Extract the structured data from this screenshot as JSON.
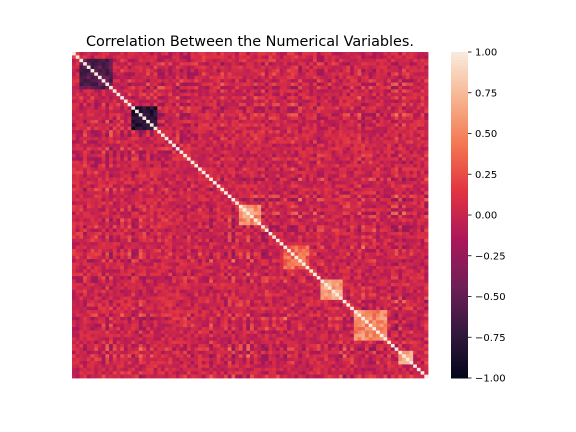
{
  "chart_data": {
    "type": "heatmap",
    "title": "Correlation Between the Numerical Variables.",
    "xlabel": "",
    "ylabel": "",
    "matrix_size": 96,
    "value_range": [
      -1.0,
      1.0
    ],
    "diagonal_value": 1.0,
    "colormap": "rocket",
    "colorbar": {
      "ticks": [
        1.0,
        0.75,
        0.5,
        0.25,
        0.0,
        -0.25,
        -0.5,
        -0.75,
        -1.0
      ],
      "tick_labels": [
        "1.00",
        "0.75",
        "0.50",
        "0.25",
        "0.00",
        "−0.25",
        "−0.50",
        "−0.75",
        "−1.00"
      ]
    },
    "approx_blocks": [
      {
        "rows": [
          2,
          10
        ],
        "mean": -0.55
      },
      {
        "rows": [
          16,
          22
        ],
        "mean": -0.8
      },
      {
        "rows": [
          45,
          50
        ],
        "mean": 0.55
      },
      {
        "rows": [
          57,
          63
        ],
        "mean": 0.35
      },
      {
        "rows": [
          67,
          72
        ],
        "mean": 0.65
      },
      {
        "rows": [
          76,
          84
        ],
        "mean": 0.5
      },
      {
        "rows": [
          88,
          91
        ],
        "mean": 0.6
      }
    ]
  },
  "colors": {
    "cmap_stops": [
      "#03051a",
      "#35193e",
      "#701f57",
      "#ad1759",
      "#e13342",
      "#f37651",
      "#f6b48f",
      "#faebdd"
    ]
  }
}
